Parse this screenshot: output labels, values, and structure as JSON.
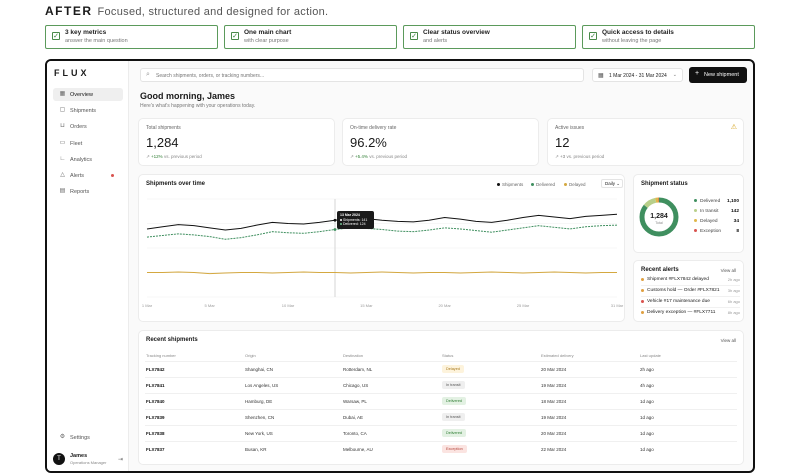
{
  "header": {
    "label": "AFTER",
    "tagline": "Focused, structured and designed for action.",
    "benefits": [
      {
        "title": "3 key metrics",
        "subtitle": "answer the main question"
      },
      {
        "title": "One main chart",
        "subtitle": "with clear purpose"
      },
      {
        "title": "Clear status overview",
        "subtitle": "and alerts"
      },
      {
        "title": "Quick access to details",
        "subtitle": "without leaving the page"
      }
    ]
  },
  "app": {
    "logo": "FLUX",
    "nav": [
      {
        "label": "Overview",
        "icon": "grid-icon"
      },
      {
        "label": "Shipments",
        "icon": "box-icon"
      },
      {
        "label": "Orders",
        "icon": "cart-icon"
      },
      {
        "label": "Fleet",
        "icon": "truck-icon"
      },
      {
        "label": "Analytics",
        "icon": "chart-icon"
      },
      {
        "label": "Alerts",
        "icon": "bell-icon"
      },
      {
        "label": "Reports",
        "icon": "document-icon"
      }
    ],
    "settings_label": "Settings",
    "user": {
      "initial": "T",
      "name": "James",
      "role": "Operations Manager"
    }
  },
  "topbar": {
    "search_placeholder": "Search shipments, orders, or tracking numbers...",
    "date_range": "1 Mar 2024 - 31 Mar 2024",
    "new_button": "New shipment"
  },
  "greeting": {
    "title": "Good morning, James",
    "subtitle": "Here's what's happening with your operations today."
  },
  "kpis": [
    {
      "label": "Total shipments",
      "value": "1,284",
      "delta": "+12%",
      "delta_note": "vs. previous period"
    },
    {
      "label": "On-time delivery rate",
      "value": "96.2%",
      "delta": "+5.4%",
      "delta_note": "vs. previous period"
    },
    {
      "label": "Active issues",
      "value": "12",
      "delta": "+3",
      "delta_note": "vs. previous period"
    }
  ],
  "chart_panel": {
    "title": "Shipments over time",
    "legend": [
      "Shipments",
      "Delivered",
      "Delayed"
    ],
    "interval": "Daily",
    "tooltip": {
      "date": "13 Mar 2024",
      "shipments": "Shipments: 141",
      "delivered": "Delivered: 124"
    }
  },
  "chart_data": {
    "type": "line",
    "x": [
      "1 Mar",
      "2 Mar",
      "3 Mar",
      "4 Mar",
      "5 Mar",
      "6 Mar",
      "7 Mar",
      "8 Mar",
      "9 Mar",
      "10 Mar",
      "11 Mar",
      "12 Mar",
      "13 Mar",
      "14 Mar",
      "15 Mar",
      "16 Mar",
      "17 Mar",
      "18 Mar",
      "19 Mar",
      "20 Mar",
      "21 Mar",
      "22 Mar",
      "23 Mar",
      "24 Mar",
      "25 Mar",
      "26 Mar",
      "27 Mar",
      "28 Mar",
      "29 Mar",
      "30 Mar",
      "31 Mar"
    ],
    "tick_labels": [
      "1 Mar",
      "5 Mar",
      "10 Mar",
      "15 Mar",
      "20 Mar",
      "25 Mar",
      "31 Mar"
    ],
    "series": [
      {
        "name": "Shipments",
        "color": "#111111",
        "values": [
          125,
          129,
          133,
          131,
          127,
          123,
          126,
          132,
          137,
          135,
          134,
          137,
          141,
          145,
          144,
          141,
          139,
          138,
          141,
          146,
          143,
          139,
          137,
          141,
          146,
          150,
          147,
          144,
          148,
          150,
          152
        ]
      },
      {
        "name": "Delivered",
        "color": "#3f8f5f",
        "values": [
          110,
          113,
          116,
          114,
          111,
          106,
          109,
          114,
          120,
          118,
          117,
          120,
          124,
          127,
          126,
          124,
          121,
          120,
          123,
          127,
          125,
          122,
          119,
          123,
          127,
          131,
          128,
          125,
          129,
          131,
          132
        ]
      },
      {
        "name": "Delayed",
        "color": "#d4a840",
        "values": [
          45,
          45,
          46,
          45,
          43,
          44,
          45,
          45,
          44,
          45,
          46,
          45,
          45,
          44,
          45,
          46,
          45,
          44,
          45,
          45,
          44,
          45,
          46,
          45,
          44,
          45,
          46,
          45,
          44,
          45,
          45
        ]
      }
    ],
    "ylim": [
      0,
      180
    ],
    "grid": true,
    "legend_position": "top-right"
  },
  "status_panel": {
    "title": "Shipment status",
    "total": "1,284",
    "total_label": "Total",
    "items": [
      {
        "label": "Delivered",
        "value": "1,100",
        "count": 1100,
        "color": "#3f8f5f"
      },
      {
        "label": "In transit",
        "value": "142",
        "count": 142,
        "color": "#b8cf8a"
      },
      {
        "label": "Delayed",
        "value": "34",
        "count": 34,
        "color": "#e0b74a"
      },
      {
        "label": "Exception",
        "value": "8",
        "count": 8,
        "color": "#d9534f"
      }
    ]
  },
  "alerts_panel": {
    "title": "Recent alerts",
    "view_all": "View all",
    "items": [
      {
        "text": "Shipment #FLX7842 delayed",
        "time": "2h ago",
        "color": "#e0a040"
      },
      {
        "text": "Customs hold — Order #FLX7821",
        "time": "3h ago",
        "color": "#e0a040"
      },
      {
        "text": "Vehicle #17 maintenance due",
        "time": "6h ago",
        "color": "#d9534f"
      },
      {
        "text": "Delivery exception — #FLX7711",
        "time": "8h ago",
        "color": "#e0a040"
      }
    ]
  },
  "table_panel": {
    "title": "Recent shipments",
    "view_all": "View all",
    "columns": [
      "Tracking number",
      "Origin",
      "Destination",
      "Status",
      "Estimated delivery",
      "Last update"
    ],
    "rows": [
      {
        "tracking": "FLX7842",
        "origin": "Shanghai, CN",
        "destination": "Rotterdam, NL",
        "status": "Delayed",
        "status_kind": "delayed",
        "eta": "20 Mar 2024",
        "updated": "2h ago"
      },
      {
        "tracking": "FLX7841",
        "origin": "Los Angeles, US",
        "destination": "Chicago, US",
        "status": "In transit",
        "status_kind": "transit",
        "eta": "19 Mar 2024",
        "updated": "4h ago"
      },
      {
        "tracking": "FLX7840",
        "origin": "Hamburg, DE",
        "destination": "Warsaw, PL",
        "status": "Delivered",
        "status_kind": "delivered",
        "eta": "18 Mar 2024",
        "updated": "1d ago"
      },
      {
        "tracking": "FLX7839",
        "origin": "Shenzhen, CN",
        "destination": "Dubai, AE",
        "status": "In transit",
        "status_kind": "transit",
        "eta": "19 Mar 2024",
        "updated": "1d ago"
      },
      {
        "tracking": "FLX7838",
        "origin": "New York, US",
        "destination": "Toronto, CA",
        "status": "Delivered",
        "status_kind": "delivered",
        "eta": "20 Mar 2024",
        "updated": "1d ago"
      },
      {
        "tracking": "FLX7837",
        "origin": "Busan, KR",
        "destination": "Melbourne, AU",
        "status": "Exception",
        "status_kind": "exception",
        "eta": "22 Mar 2024",
        "updated": "1d ago"
      }
    ]
  }
}
